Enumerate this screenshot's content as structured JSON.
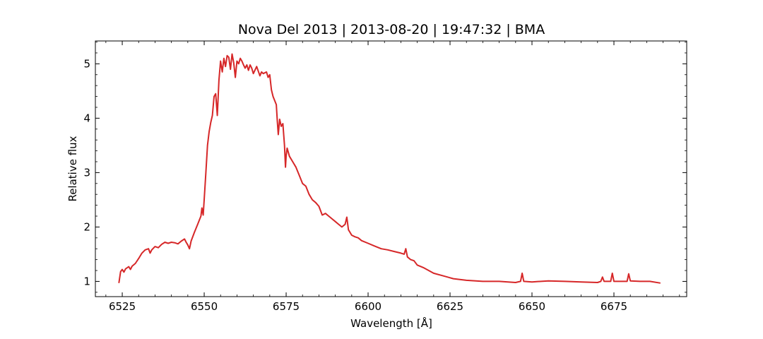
{
  "chart_data": {
    "type": "line",
    "title": "Nova Del 2013 | 2013-08-20 | 19:47:32 | BMA",
    "xlabel": "Wavelength [Å]",
    "ylabel": "Relative flux",
    "xlim": [
      6516.8,
      6697.2
    ],
    "ylim": [
      0.72,
      5.42
    ],
    "xticks": [
      6525,
      6550,
      6575,
      6600,
      6625,
      6650,
      6675
    ],
    "xtick_labels": [
      "6525",
      "6550",
      "6575",
      "6600",
      "6625",
      "6650",
      "6675"
    ],
    "yticks": [
      1,
      2,
      3,
      4,
      5
    ],
    "ytick_labels": [
      "1",
      "2",
      "3",
      "4",
      "5"
    ],
    "grid": false,
    "legend": "none",
    "series": [
      {
        "color": "#d62728",
        "x": [
          6524.0,
          6524.5,
          6525.0,
          6525.5,
          6526.0,
          6527.0,
          6527.5,
          6528.0,
          6529.0,
          6530.0,
          6531.0,
          6532.0,
          6533.0,
          6533.5,
          6534.0,
          6535.0,
          6536.0,
          6537.0,
          6538.0,
          6539.0,
          6540.0,
          6541.0,
          6542.0,
          6543.0,
          6544.0,
          6544.5,
          6545.0,
          6545.5,
          6546.0,
          6547.0,
          6548.0,
          6549.0,
          6549.3,
          6549.7,
          6550.0,
          6550.5,
          6551.0,
          6551.5,
          6552.0,
          6552.5,
          6553.0,
          6553.5,
          6554.0,
          6554.5,
          6555.0,
          6555.5,
          6556.0,
          6556.5,
          6557.0,
          6557.5,
          6558.0,
          6558.5,
          6559.0,
          6559.5,
          6560.0,
          6560.5,
          6561.0,
          6561.5,
          6562.0,
          6562.5,
          6563.0,
          6563.5,
          6564.0,
          6564.5,
          6565.0,
          6566.0,
          6567.0,
          6567.5,
          6568.0,
          6569.0,
          6569.5,
          6570.0,
          6570.5,
          6571.0,
          6572.0,
          6572.3,
          6572.6,
          6573.0,
          6573.5,
          6574.0,
          6574.5,
          6574.8,
          6575.0,
          6575.3,
          6576.0,
          6577.0,
          6578.0,
          6579.0,
          6580.0,
          6581.0,
          6582.0,
          6583.0,
          6584.0,
          6585.0,
          6586.0,
          6587.0,
          6588.0,
          6589.0,
          6590.0,
          6591.0,
          6592.0,
          6593.0,
          6593.5,
          6594.0,
          6594.5,
          6595.0,
          6596.0,
          6597.0,
          6598.0,
          6600.0,
          6602.0,
          6604.0,
          6606.0,
          6608.0,
          6610.0,
          6611.0,
          6611.5,
          6612.0,
          6613.0,
          6614.0,
          6615.0,
          6617.0,
          6620.0,
          6623.0,
          6626.0,
          6630.0,
          6635.0,
          6640.0,
          6645.0,
          6646.5,
          6647.0,
          6647.5,
          6650.0,
          6655.0,
          6660.0,
          6665.0,
          6670.0,
          6671.0,
          6671.5,
          6672.0,
          6674.0,
          6674.5,
          6675.0,
          6678.0,
          6679.0,
          6679.5,
          6680.0,
          6683.0,
          6686.0,
          6689.0
        ],
        "y": [
          0.98,
          1.18,
          1.22,
          1.17,
          1.23,
          1.27,
          1.22,
          1.28,
          1.33,
          1.42,
          1.52,
          1.58,
          1.6,
          1.52,
          1.58,
          1.64,
          1.62,
          1.68,
          1.72,
          1.7,
          1.72,
          1.71,
          1.69,
          1.74,
          1.78,
          1.72,
          1.67,
          1.6,
          1.74,
          1.9,
          2.05,
          2.2,
          2.35,
          2.22,
          2.5,
          3.0,
          3.5,
          3.75,
          3.92,
          4.05,
          4.4,
          4.45,
          4.05,
          4.7,
          5.05,
          4.85,
          5.1,
          4.95,
          5.15,
          5.12,
          4.9,
          5.18,
          5.02,
          4.75,
          5.05,
          5.0,
          5.1,
          5.05,
          4.98,
          4.92,
          4.98,
          4.88,
          4.98,
          4.92,
          4.82,
          4.95,
          4.78,
          4.85,
          4.82,
          4.85,
          4.75,
          4.8,
          4.52,
          4.4,
          4.25,
          3.95,
          3.7,
          3.98,
          3.85,
          3.9,
          3.5,
          3.1,
          3.3,
          3.45,
          3.3,
          3.2,
          3.1,
          2.95,
          2.8,
          2.75,
          2.6,
          2.5,
          2.45,
          2.38,
          2.22,
          2.25,
          2.2,
          2.15,
          2.1,
          2.05,
          2.0,
          2.05,
          2.18,
          1.95,
          1.9,
          1.85,
          1.82,
          1.8,
          1.75,
          1.7,
          1.65,
          1.6,
          1.58,
          1.55,
          1.52,
          1.5,
          1.6,
          1.45,
          1.4,
          1.38,
          1.3,
          1.25,
          1.15,
          1.1,
          1.05,
          1.02,
          1.0,
          1.0,
          0.98,
          1.0,
          1.15,
          1.0,
          0.99,
          1.01,
          1.0,
          0.99,
          0.98,
          1.0,
          1.08,
          1.0,
          1.0,
          1.15,
          1.0,
          1.0,
          1.0,
          1.14,
          1.01,
          1.0,
          1.0,
          0.97
        ]
      }
    ]
  }
}
